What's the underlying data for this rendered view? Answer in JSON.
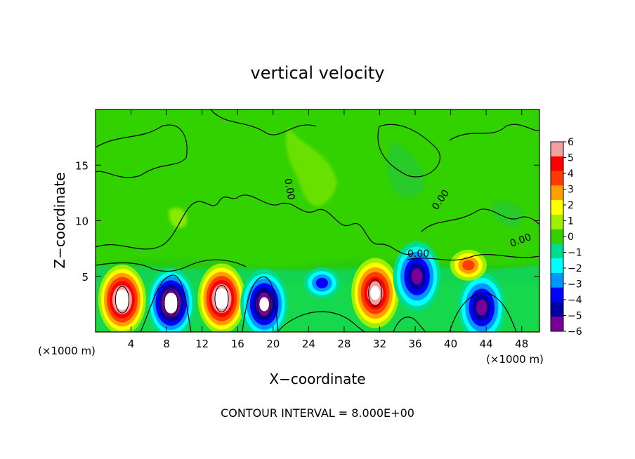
{
  "chart_data": {
    "type": "heatmap",
    "title": "vertical velocity",
    "xlabel": "X−coordinate",
    "ylabel": "Z−coordinate",
    "x_unit_left": "(×1000 m)",
    "x_unit_right": "(×1000 m)",
    "footer": "CONTOUR INTERVAL = 8.000E+00",
    "xlim": [
      0,
      50
    ],
    "ylim": [
      0,
      20
    ],
    "x_ticks": [
      4,
      8,
      12,
      16,
      20,
      24,
      28,
      32,
      36,
      40,
      44,
      48
    ],
    "x_tick_labels": [
      "4",
      "8",
      "12",
      "16",
      "20",
      "24",
      "28",
      "32",
      "36",
      "40",
      "44",
      "48"
    ],
    "y_ticks": [
      5,
      10,
      15
    ],
    "y_tick_labels": [
      "5",
      "10",
      "15"
    ],
    "contour_labels": [
      "0.00",
      "0.00",
      "0.00",
      "0.00"
    ],
    "colorbar": {
      "min": -6,
      "max": 6,
      "ticks": [
        6,
        5,
        4,
        3,
        2,
        1,
        0,
        -1,
        -2,
        -3,
        -4,
        -5,
        -6
      ],
      "tick_labels": [
        "6",
        "5",
        "4",
        "3",
        "2",
        "1",
        "0",
        "−1",
        "−2",
        "−3",
        "−4",
        "−5",
        "−6"
      ],
      "colors": [
        "#f4a0a0",
        "#ff0000",
        "#ff3c00",
        "#ffa000",
        "#ffff00",
        "#9ef000",
        "#32d200",
        "#00dc8c",
        "#00ffff",
        "#0096ff",
        "#0000ff",
        "#0000a0",
        "#780096"
      ]
    },
    "features": [
      {
        "x": 3,
        "z": 2.9,
        "w": 8
      },
      {
        "x": 8.5,
        "z": 2.6,
        "w": -8
      },
      {
        "x": 14.2,
        "z": 3.0,
        "w": 8
      },
      {
        "x": 19,
        "z": 2.5,
        "w": -7
      },
      {
        "x": 25.5,
        "z": 4.4,
        "w": -3.5
      },
      {
        "x": 31.5,
        "z": 3.5,
        "w": 7
      },
      {
        "x": 36.2,
        "z": 5.0,
        "w": -6
      },
      {
        "x": 43.5,
        "z": 2.2,
        "w": -6
      },
      {
        "x": 42,
        "z": 6,
        "w": 4
      }
    ]
  }
}
